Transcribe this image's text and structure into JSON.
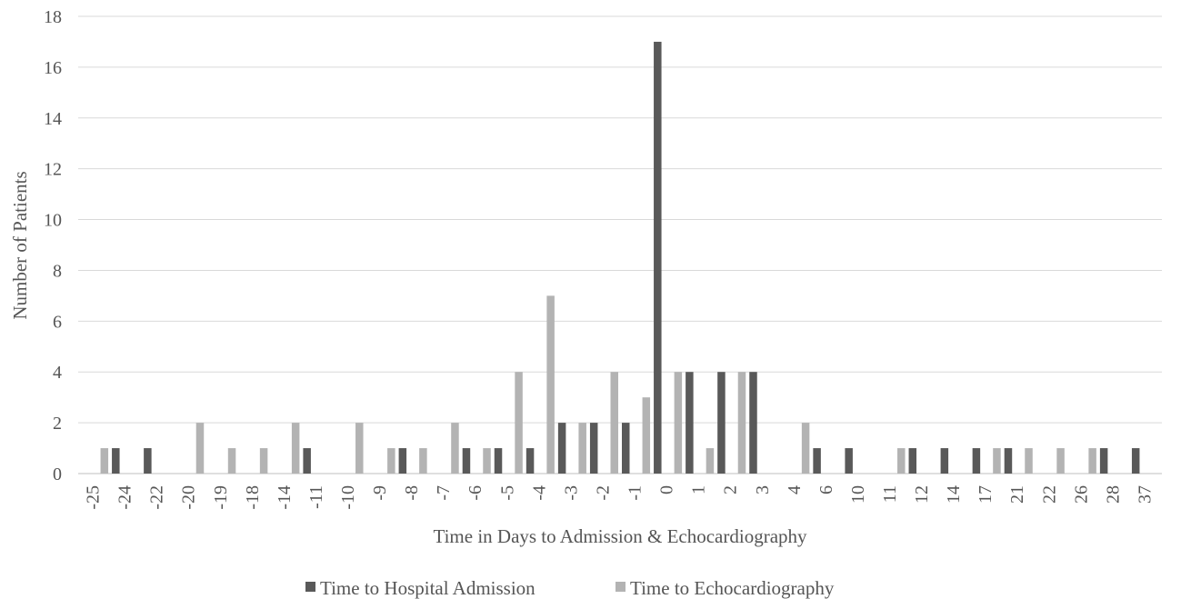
{
  "chart_data": {
    "type": "bar",
    "title": "",
    "xlabel": "Time in Days to Admission & Echocardiography",
    "ylabel": "Number of Patients",
    "ylim": [
      0,
      18
    ],
    "ytick_step": 2,
    "grid": true,
    "legend_position": "bottom",
    "categories": [
      "-25",
      "-24",
      "-22",
      "-20",
      "-19",
      "-18",
      "-14",
      "-11",
      "-10",
      "-9",
      "-8",
      "-7",
      "-6",
      "-5",
      "-4",
      "-3",
      "-2",
      "-1",
      "0",
      "1",
      "2",
      "3",
      "4",
      "6",
      "10",
      "11",
      "12",
      "14",
      "17",
      "21",
      "22",
      "26",
      "28",
      "37"
    ],
    "series": [
      {
        "name": "Time to Hospital Admission",
        "color": "#595959",
        "values": [
          0,
          1,
          1,
          0,
          0,
          0,
          0,
          1,
          0,
          0,
          1,
          0,
          1,
          1,
          1,
          2,
          2,
          2,
          17,
          4,
          4,
          4,
          0,
          1,
          1,
          0,
          1,
          1,
          1,
          1,
          0,
          0,
          1,
          1
        ]
      },
      {
        "name": "Time to Echocardiography",
        "color": "#b3b3b3",
        "values": [
          1,
          0,
          0,
          2,
          1,
          1,
          2,
          0,
          2,
          1,
          1,
          2,
          1,
          4,
          7,
          2,
          4,
          3,
          4,
          1,
          4,
          0,
          2,
          0,
          0,
          1,
          0,
          0,
          1,
          1,
          1,
          1,
          0,
          0
        ]
      }
    ],
    "colors": {
      "grid": "#d9d9d9",
      "text": "#555555",
      "axis": "#bfbfbf"
    }
  }
}
